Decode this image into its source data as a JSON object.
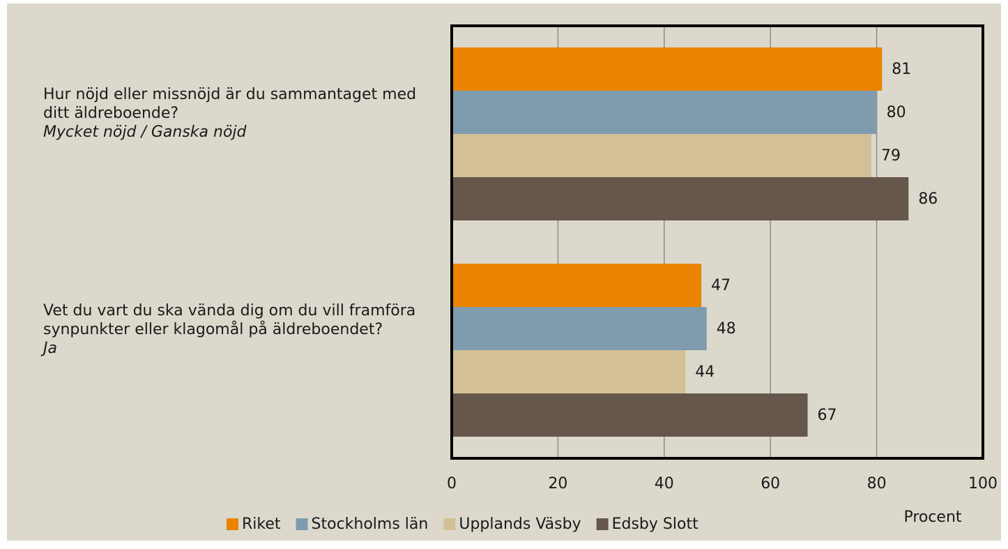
{
  "chart_data": {
    "type": "hbar",
    "categories": [
      "Hur nöjd eller missnöjd är du sammantaget med ditt äldreboende?",
      "Vet du vart du ska vända dig om du vill framföra synpunkter eller klagomål på äldreboendet?"
    ],
    "category_answers": [
      "Mycket nöjd / Ganska nöjd",
      "Ja"
    ],
    "series": [
      {
        "name": "Riket",
        "color": "#e98300",
        "values": [
          81,
          47
        ]
      },
      {
        "name": "Stockholms län",
        "color": "#7f9cae",
        "values": [
          80,
          48
        ]
      },
      {
        "name": "Upplands Väsby",
        "color": "#d4c097",
        "values": [
          79,
          44
        ]
      },
      {
        "name": "Edsby Slott",
        "color": "#65574b",
        "values": [
          86,
          67
        ]
      }
    ],
    "xlabel": "Procent",
    "xlim": [
      0,
      100
    ],
    "xticks": [
      0,
      20,
      40,
      60,
      80,
      100
    ],
    "grid": true
  }
}
